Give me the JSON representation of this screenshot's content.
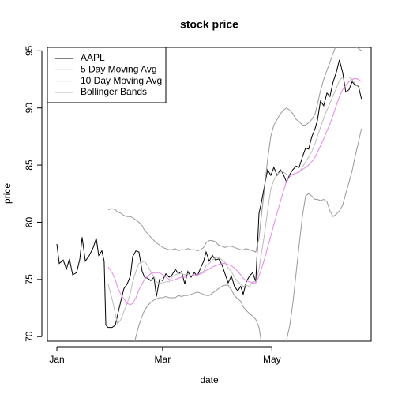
{
  "chart_data": {
    "type": "line",
    "title": "stock price",
    "x_label": "date",
    "y_label": "price",
    "x": [
      0,
      1.3,
      3.5,
      5.3,
      7.0,
      8.8,
      11.0,
      12.8,
      14.1,
      15.9,
      18.1,
      20.3,
      22.0,
      23.3,
      25.1,
      26.4,
      27.3,
      28.6,
      30.8,
      32.6,
      33.9,
      35.7,
      37.4,
      39.2,
      41.0,
      42.3,
      44.1,
      45.8,
      47.6,
      48.9,
      50.7,
      52.4,
      54.2,
      55.5,
      57.3,
      59.0,
      60.8,
      62.6,
      64.3,
      66.1,
      67.8,
      69.6,
      71.4,
      73.1,
      74.9,
      76.7,
      78.4,
      80.2,
      81.9,
      83.3,
      85.0,
      86.8,
      88.5,
      90.3,
      92.1,
      93.8,
      95.6,
      97.4,
      99.1,
      100.9,
      102.6,
      104.0,
      105.7,
      107.5,
      109.3,
      111.0,
      112.8,
      114.1,
      115.9,
      117.6,
      119.4,
      121.1,
      122.9,
      124.7,
      126.4,
      128.2,
      130.0,
      131.7,
      133.5,
      135.2,
      137.0,
      138.8,
      140.5,
      142.3,
      144.1,
      145.4,
      147.1,
      148.9,
      150.7,
      152.4,
      154.2,
      155.9,
      157.7,
      159.5,
      161.2,
      163.0,
      164.8,
      166.5,
      168.3,
      170.0
    ],
    "series": [
      {
        "name": "AAPL",
        "color": "#000000",
        "values": [
          78.1,
          76.4,
          76.7,
          75.9,
          76.8,
          75.4,
          75.6,
          76.8,
          78.7,
          76.6,
          77.1,
          77.8,
          78.6,
          77.1,
          77.5,
          76.6,
          71.0,
          70.8,
          70.8,
          71.0,
          71.9,
          73.1,
          74.2,
          74.6,
          75.3,
          77.0,
          77.5,
          77.4,
          75.7,
          75.2,
          75.1,
          74.9,
          75.2,
          73.5,
          75.0,
          74.9,
          75.5,
          75.2,
          75.4,
          75.9,
          75.5,
          75.7,
          74.6,
          75.7,
          75.2,
          75.6,
          75.3,
          76.0,
          76.6,
          77.4,
          76.6,
          77.1,
          76.7,
          76.8,
          76.3,
          75.5,
          74.7,
          75.3,
          74.4,
          74.0,
          74.4,
          73.7,
          74.8,
          75.3,
          75.6,
          74.8,
          80.8,
          81.7,
          83.2,
          84.6,
          84.1,
          84.8,
          84.1,
          84.6,
          84.2,
          83.5,
          84.2,
          84.6,
          84.9,
          84.8,
          85.7,
          86.5,
          86.4,
          87.5,
          88.2,
          88.9,
          90.6,
          90.2,
          91.3,
          91.0,
          92.3,
          93.1,
          94.2,
          93.1,
          91.4,
          91.6,
          92.3,
          92.0,
          91.9,
          90.8
        ]
      },
      {
        "name": "5 Day Moving Avg",
        "color": "#bbbbbb",
        "values": [
          null,
          null,
          null,
          null,
          null,
          null,
          null,
          null,
          null,
          null,
          null,
          null,
          null,
          null,
          null,
          null,
          null,
          74.6,
          73.3,
          72.0,
          71.1,
          71.5,
          72.2,
          72.9,
          73.8,
          74.8,
          75.7,
          76.4,
          76.5,
          76.6,
          76.2,
          75.7,
          75.2,
          74.8,
          74.7,
          74.7,
          74.8,
          74.8,
          75.2,
          75.4,
          75.5,
          75.5,
          75.4,
          75.5,
          75.3,
          75.4,
          75.3,
          75.6,
          75.7,
          76.2,
          76.4,
          76.7,
          76.9,
          76.9,
          76.7,
          76.5,
          76.0,
          75.7,
          75.2,
          74.8,
          74.6,
          74.4,
          74.5,
          74.4,
          74.8,
          74.8,
          75.9,
          77.2,
          79.0,
          81.0,
          82.9,
          83.7,
          84.2,
          84.4,
          84.4,
          84.2,
          84.1,
          84.2,
          84.3,
          84.4,
          84.8,
          85.3,
          85.7,
          86.2,
          86.9,
          87.5,
          88.3,
          89.1,
          89.8,
          90.4,
          91.1,
          91.7,
          92.4,
          92.7,
          92.7,
          92.7,
          92.5,
          92.1,
          91.8,
          91.7
        ]
      },
      {
        "name": "10 Day Moving Avg",
        "color": "#ee82ee",
        "values": [
          null,
          null,
          null,
          null,
          null,
          null,
          null,
          null,
          null,
          null,
          null,
          null,
          null,
          null,
          null,
          null,
          null,
          76.1,
          75.6,
          75.0,
          74.3,
          73.7,
          73.3,
          72.9,
          72.8,
          72.9,
          73.4,
          74.1,
          74.6,
          75.0,
          75.3,
          75.5,
          75.6,
          75.6,
          75.6,
          75.4,
          75.2,
          75.0,
          74.9,
          75.0,
          75.1,
          75.2,
          75.2,
          75.3,
          75.3,
          75.4,
          75.4,
          75.5,
          75.6,
          75.8,
          75.9,
          76.1,
          76.2,
          76.3,
          76.4,
          76.4,
          76.3,
          76.2,
          76.0,
          75.7,
          75.4,
          75.1,
          74.9,
          74.8,
          74.7,
          74.7,
          75.3,
          75.9,
          76.8,
          77.8,
          78.8,
          79.8,
          80.8,
          81.8,
          82.7,
          83.6,
          84.0,
          84.2,
          84.3,
          84.4,
          84.6,
          84.8,
          85.0,
          85.3,
          85.7,
          86.1,
          86.7,
          87.3,
          88.0,
          88.6,
          89.4,
          90.2,
          91.0,
          91.6,
          92.0,
          92.3,
          92.5,
          92.6,
          92.5,
          92.3
        ]
      },
      {
        "name": "Bollinger Bands",
        "color": "#999999",
        "upper": [
          null,
          null,
          null,
          null,
          null,
          null,
          null,
          null,
          null,
          null,
          null,
          null,
          null,
          null,
          null,
          null,
          null,
          81.1,
          81.2,
          81.1,
          80.9,
          80.8,
          80.6,
          80.5,
          80.5,
          80.4,
          80.2,
          80.0,
          79.7,
          79.3,
          79.0,
          78.7,
          78.4,
          78.2,
          78.0,
          77.8,
          77.7,
          77.6,
          77.6,
          77.7,
          77.5,
          77.6,
          77.6,
          77.7,
          77.6,
          77.6,
          77.5,
          77.6,
          77.8,
          78.2,
          78.4,
          78.4,
          78.3,
          78.0,
          77.9,
          77.8,
          77.9,
          77.9,
          77.8,
          77.7,
          77.6,
          77.6,
          77.7,
          77.6,
          77.5,
          77.4,
          78.6,
          80.5,
          83.0,
          85.5,
          87.5,
          88.5,
          89.0,
          89.5,
          89.8,
          90.0,
          89.8,
          89.5,
          89.0,
          88.8,
          88.5,
          88.5,
          88.7,
          89.0,
          89.5,
          90.3,
          91.5,
          92.5,
          93.3,
          94.0,
          94.8,
          95.5,
          96.0,
          96.2,
          96.0,
          95.8,
          95.6,
          95.4,
          95.2,
          95.0
        ],
        "lower": [
          null,
          null,
          null,
          null,
          null,
          null,
          null,
          null,
          null,
          null,
          null,
          null,
          null,
          null,
          null,
          null,
          null,
          68.0,
          67.5,
          66.8,
          66.2,
          66.0,
          66.2,
          66.8,
          67.6,
          68.8,
          70.0,
          71.0,
          71.8,
          72.3,
          72.7,
          73.0,
          73.2,
          73.3,
          73.4,
          73.4,
          73.5,
          73.4,
          73.4,
          73.4,
          73.6,
          73.5,
          73.6,
          73.6,
          73.7,
          73.8,
          73.9,
          73.8,
          73.7,
          73.6,
          73.6,
          73.8,
          74.0,
          74.2,
          74.4,
          74.5,
          74.5,
          74.1,
          73.6,
          73.3,
          73.1,
          72.6,
          72.3,
          72.0,
          71.8,
          71.5,
          70.8,
          69.5,
          67.5,
          66.0,
          65.0,
          65.5,
          66.5,
          67.6,
          68.6,
          69.7,
          71.0,
          72.9,
          75.5,
          78.0,
          80.5,
          82.3,
          82.5,
          82.3,
          82.0,
          82.0,
          81.9,
          82.0,
          81.8,
          81.0,
          80.5,
          80.7,
          81.0,
          81.5,
          82.5,
          83.5,
          84.5,
          85.8,
          87.0,
          88.2
        ]
      }
    ],
    "xlim": [
      -5.3,
      175.4
    ],
    "xticks": [
      {
        "value": 0,
        "label": "Jan"
      },
      {
        "value": 59,
        "label": "Mar"
      },
      {
        "value": 120,
        "label": "May"
      }
    ],
    "ylim": [
      69.6,
      95.3
    ],
    "yticks": [
      70,
      75,
      80,
      85,
      90,
      95
    ],
    "legend": "topleft",
    "grid": false
  }
}
